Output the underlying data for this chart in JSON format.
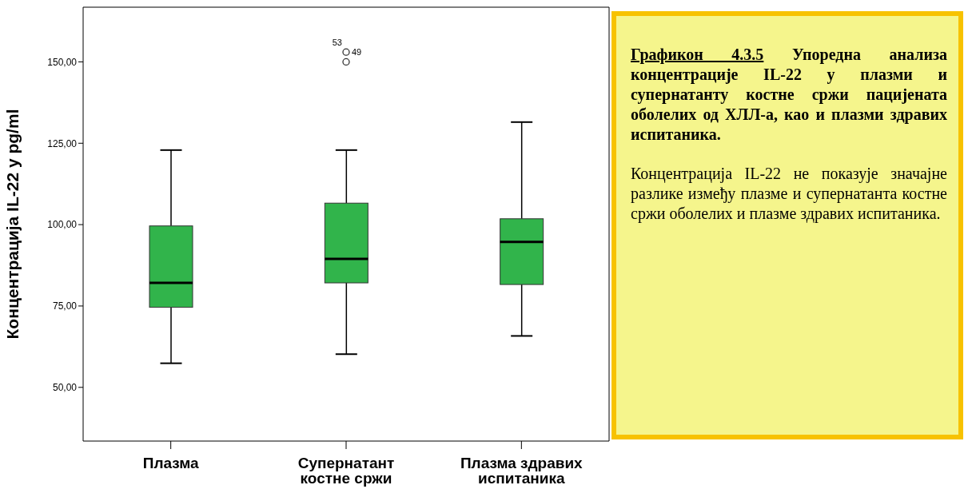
{
  "chart_data": [
    {
      "type": "box",
      "ylabel": "Концентрација IL-22 у pg/ml",
      "categories": [
        "Плазма",
        "Супернатант костне сржи",
        "Плазма здравих испитаника"
      ],
      "color": "#31b44b",
      "boxes": [
        {
          "low": 57.4,
          "q1": 74.6,
          "median": 82.1,
          "q3": 99.6,
          "high": 122.9
        },
        {
          "low": 60.2,
          "q1": 82.1,
          "median": 89.5,
          "q3": 106.6,
          "high": 122.9,
          "outliers": [
            153.0,
            150.0
          ]
        },
        {
          "low": 65.8,
          "q1": 81.6,
          "median": 94.7,
          "q3": 101.8,
          "high": 131.5
        }
      ],
      "ylim": [
        33.5,
        166.8
      ],
      "yticks": [
        {
          "value": 50,
          "label": "50,00"
        },
        {
          "value": 75,
          "label": "75,00"
        },
        {
          "value": 100,
          "label": "100,00"
        },
        {
          "value": 125,
          "label": "125,00"
        },
        {
          "value": 150,
          "label": "150,00"
        }
      ],
      "annotations": [
        "53",
        "49"
      ],
      "grid": false,
      "legend": false
    },
    {
      "type": "other",
      "title": "Графикон 4.3.5",
      "subtitle": "Упоредна анализа концентрације IL-22 у плазми и супернатанту костне сржи пацијената оболелих од ХЛЛ-а, као и плазми здравих испитаника.",
      "annotations": [
        "Концентрација IL-22 не показује значајне разлике између плазме и супернатанта костне сржи оболелих и плазме здравих испитаника."
      ]
    }
  ]
}
